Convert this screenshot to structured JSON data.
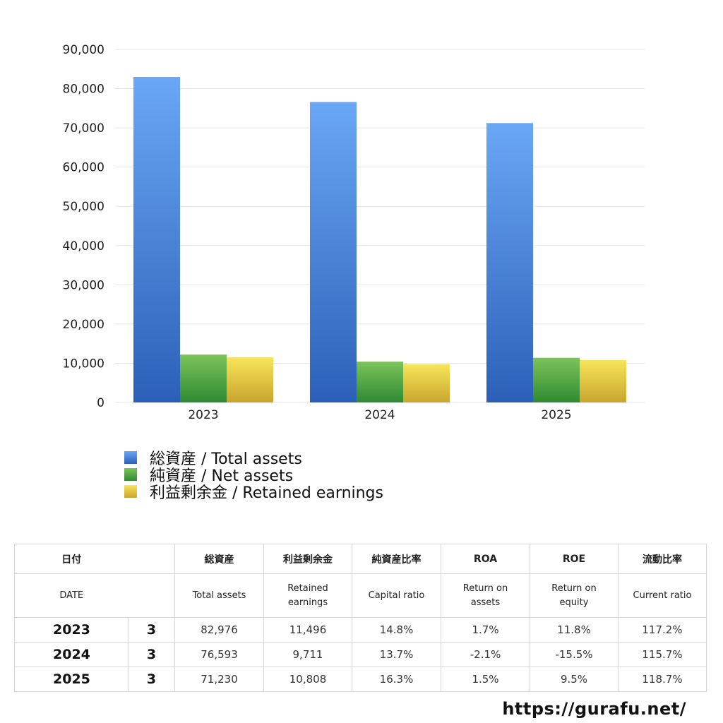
{
  "chart_data": {
    "type": "bar",
    "categories": [
      "2023",
      "2024",
      "2025"
    ],
    "series": [
      {
        "name": "総資産 / Total assets",
        "values": [
          82976,
          76593,
          71230
        ]
      },
      {
        "name": "純資産 / Net assets",
        "values": [
          12200,
          10400,
          11400
        ]
      },
      {
        "name": "利益剰余金 / Retained earnings",
        "values": [
          11496,
          9711,
          10808
        ]
      }
    ],
    "ylim": [
      0,
      90000
    ],
    "yticks": [
      "0",
      "10,000",
      "20,000",
      "30,000",
      "40,000",
      "50,000",
      "60,000",
      "70,000",
      "80,000",
      "90,000"
    ],
    "grid": true,
    "legend_position": "bottom-left"
  },
  "table": {
    "header_jp": [
      "日付",
      "総資産",
      "利益剰余金",
      "純資産比率",
      "ROA",
      "ROE",
      "流動比率"
    ],
    "header_en": [
      "DATE",
      "Total assets",
      "Retained earnings",
      "Capital ratio",
      "Return on assets",
      "Return on equity",
      "Current ratio"
    ],
    "rows": [
      {
        "year": "2023",
        "month": "3",
        "total_assets": "82,976",
        "retained": "11,496",
        "capital_ratio": "14.8%",
        "roa": "1.7%",
        "roe": "11.8%",
        "current_ratio": "117.2%"
      },
      {
        "year": "2024",
        "month": "3",
        "total_assets": "76,593",
        "retained": "9,711",
        "capital_ratio": "13.7%",
        "roa": "-2.1%",
        "roe": "-15.5%",
        "current_ratio": "115.7%"
      },
      {
        "year": "2025",
        "month": "3",
        "total_assets": "71,230",
        "retained": "10,808",
        "capital_ratio": "16.3%",
        "roa": "1.5%",
        "roe": "9.5%",
        "current_ratio": "118.7%"
      }
    ]
  },
  "colors": {
    "negative": "#e0452a"
  },
  "footer": {
    "url": "https://gurafu.net/"
  }
}
